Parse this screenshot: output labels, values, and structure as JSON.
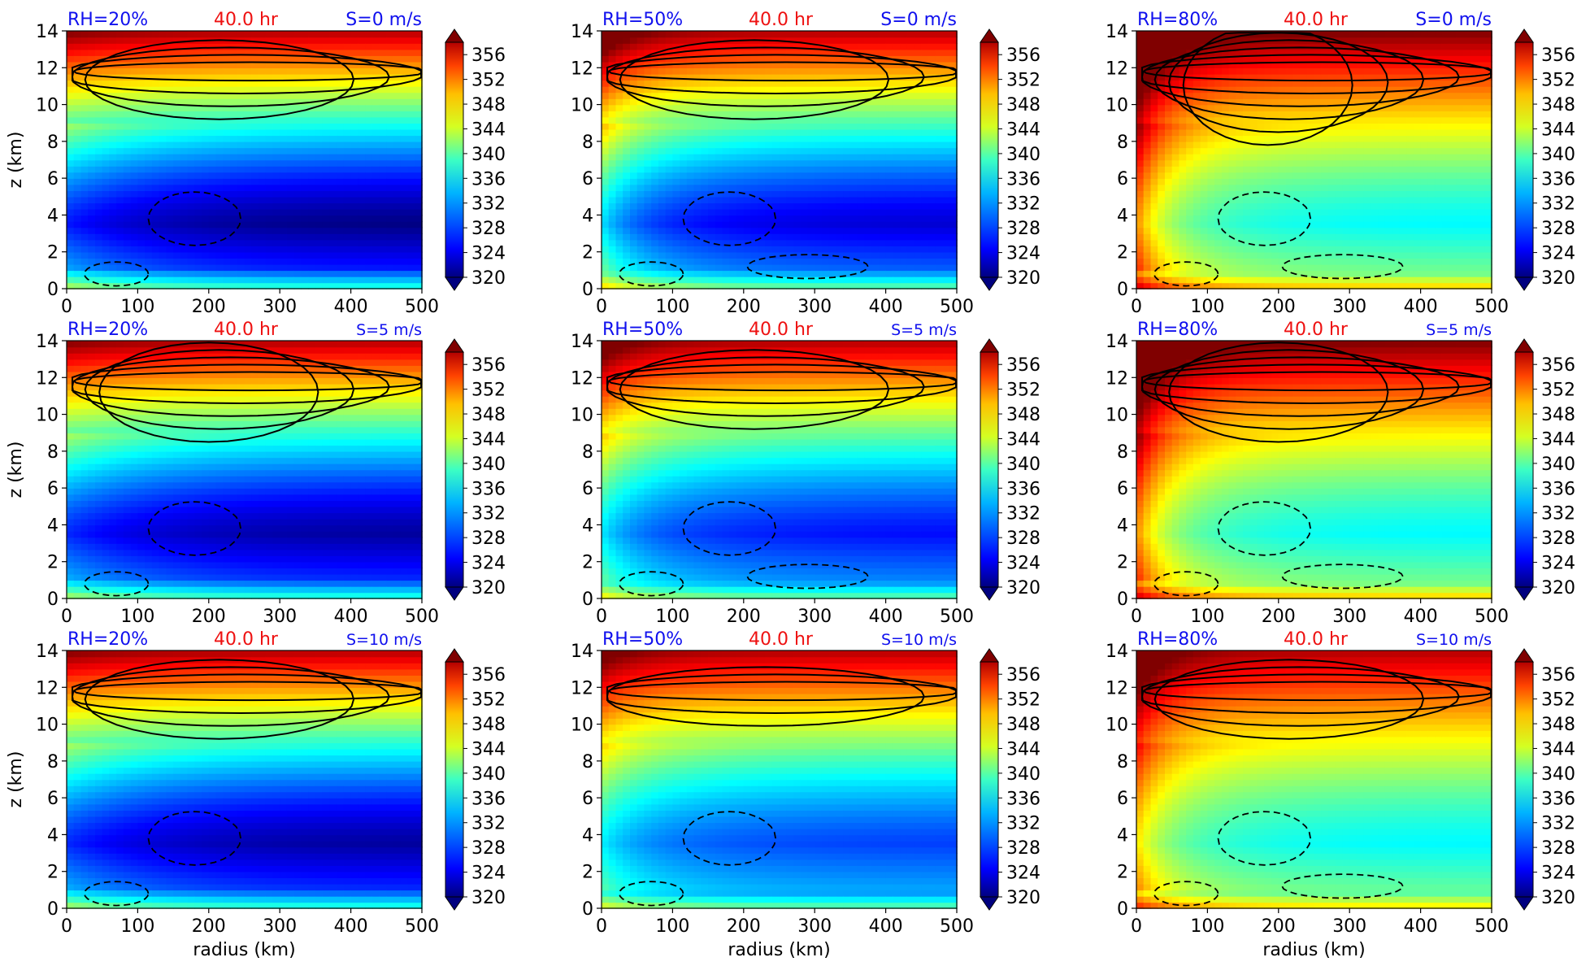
{
  "figure": {
    "row_speed_labels": [
      "S=0 m/s",
      "S=5 m/s",
      "S=10 m/s"
    ],
    "col_rh_labels": [
      "RH=20%",
      "RH=50%",
      "RH=80%"
    ],
    "time_label": "40.0 hr",
    "colors": {
      "rh_label": "#1010ee",
      "time_label": "#ee1111",
      "speed_label": "#1010ee",
      "contour_line": "#000000",
      "axis": "#000000"
    },
    "colormap": "jet",
    "colorbar": {
      "min": 320,
      "max": 358,
      "extend": "both",
      "tick_labels": [
        "320",
        "324",
        "328",
        "332",
        "336",
        "340",
        "344",
        "348",
        "352",
        "356"
      ],
      "tick_values": [
        320,
        324,
        328,
        332,
        336,
        340,
        344,
        348,
        352,
        356
      ]
    }
  },
  "chart_data": [
    {
      "type": "heatmap",
      "rh": "RH=20%",
      "time": "40.0 hr",
      "shear": "S=0 m/s",
      "xlabel": "",
      "ylabel": "z (km)",
      "xlim": [
        0,
        500
      ],
      "ylim": [
        0,
        14
      ],
      "xticks": [
        "0",
        "100",
        "200",
        "300",
        "400",
        "500"
      ],
      "yticks": [
        "0",
        "2",
        "4",
        "6",
        "8",
        "10",
        "12",
        "14"
      ],
      "theta_e_surface": 336,
      "theta_e_min": 320,
      "theta_e_top": 356,
      "core_warm": 0,
      "contour_solid_levels": 4,
      "contour_dashed_regions": 2
    },
    {
      "type": "heatmap",
      "rh": "RH=50%",
      "time": "40.0 hr",
      "shear": "S=0 m/s",
      "xlabel": "",
      "ylabel": "",
      "xlim": [
        0,
        500
      ],
      "ylim": [
        0,
        14
      ],
      "xticks": [
        "0",
        "100",
        "200",
        "300",
        "400",
        "500"
      ],
      "yticks": [
        "0",
        "2",
        "4",
        "6",
        "8",
        "10",
        "12",
        "14"
      ],
      "theta_e_surface": 338,
      "theta_e_min": 323,
      "theta_e_top": 356,
      "core_warm": 0.5,
      "contour_solid_levels": 4,
      "contour_dashed_regions": 3
    },
    {
      "type": "heatmap",
      "rh": "RH=80%",
      "time": "40.0 hr",
      "shear": "S=0 m/s",
      "xlabel": "",
      "ylabel": "",
      "xlim": [
        0,
        500
      ],
      "ylim": [
        0,
        14
      ],
      "xticks": [
        "0",
        "100",
        "200",
        "300",
        "400",
        "500"
      ],
      "yticks": [
        "0",
        "2",
        "4",
        "6",
        "8",
        "10",
        "12",
        "14"
      ],
      "theta_e_surface": 346,
      "theta_e_min": 334,
      "theta_e_top": 358,
      "core_warm": 1,
      "contour_solid_levels": 6,
      "contour_dashed_regions": 3
    },
    {
      "type": "heatmap",
      "rh": "RH=20%",
      "time": "40.0 hr",
      "shear": "S=5 m/s",
      "xlabel": "",
      "ylabel": "z (km)",
      "xlim": [
        0,
        500
      ],
      "ylim": [
        0,
        14
      ],
      "xticks": [
        "0",
        "100",
        "200",
        "300",
        "400",
        "500"
      ],
      "yticks": [
        "0",
        "2",
        "4",
        "6",
        "8",
        "10",
        "12",
        "14"
      ],
      "theta_e_surface": 336,
      "theta_e_min": 321,
      "theta_e_top": 356,
      "core_warm": 0,
      "contour_solid_levels": 5,
      "contour_dashed_regions": 2
    },
    {
      "type": "heatmap",
      "rh": "RH=50%",
      "time": "40.0 hr",
      "shear": "S=5 m/s",
      "xlabel": "",
      "ylabel": "",
      "xlim": [
        0,
        500
      ],
      "ylim": [
        0,
        14
      ],
      "xticks": [
        "0",
        "100",
        "200",
        "300",
        "400",
        "500"
      ],
      "yticks": [
        "0",
        "2",
        "4",
        "6",
        "8",
        "10",
        "12",
        "14"
      ],
      "theta_e_surface": 338,
      "theta_e_min": 325,
      "theta_e_top": 356,
      "core_warm": 0.4,
      "contour_solid_levels": 4,
      "contour_dashed_regions": 3
    },
    {
      "type": "heatmap",
      "rh": "RH=80%",
      "time": "40.0 hr",
      "shear": "S=5 m/s",
      "xlabel": "",
      "ylabel": "",
      "xlim": [
        0,
        500
      ],
      "ylim": [
        0,
        14
      ],
      "xticks": [
        "0",
        "100",
        "200",
        "300",
        "400",
        "500"
      ],
      "yticks": [
        "0",
        "2",
        "4",
        "6",
        "8",
        "10",
        "12",
        "14"
      ],
      "theta_e_surface": 346,
      "theta_e_min": 334,
      "theta_e_top": 358,
      "core_warm": 1,
      "contour_solid_levels": 5,
      "contour_dashed_regions": 3
    },
    {
      "type": "heatmap",
      "rh": "RH=20%",
      "time": "40.0 hr",
      "shear": "S=10 m/s",
      "xlabel": "radius (km)",
      "ylabel": "z (km)",
      "xlim": [
        0,
        500
      ],
      "ylim": [
        0,
        14
      ],
      "xticks": [
        "0",
        "100",
        "200",
        "300",
        "400",
        "500"
      ],
      "yticks": [
        "0",
        "2",
        "4",
        "6",
        "8",
        "10",
        "12",
        "14"
      ],
      "theta_e_surface": 336,
      "theta_e_min": 321,
      "theta_e_top": 356,
      "core_warm": 0,
      "contour_solid_levels": 4,
      "contour_dashed_regions": 2
    },
    {
      "type": "heatmap",
      "rh": "RH=50%",
      "time": "40.0 hr",
      "shear": "S=10 m/s",
      "xlabel": "radius (km)",
      "ylabel": "",
      "xlim": [
        0,
        500
      ],
      "ylim": [
        0,
        14
      ],
      "xticks": [
        "0",
        "100",
        "200",
        "300",
        "400",
        "500"
      ],
      "yticks": [
        "0",
        "2",
        "4",
        "6",
        "8",
        "10",
        "12",
        "14"
      ],
      "theta_e_surface": 338,
      "theta_e_min": 327,
      "theta_e_top": 356,
      "core_warm": 0.3,
      "contour_solid_levels": 3,
      "contour_dashed_regions": 2
    },
    {
      "type": "heatmap",
      "rh": "RH=80%",
      "time": "40.0 hr",
      "shear": "S=10 m/s",
      "xlabel": "radius (km)",
      "ylabel": "",
      "xlim": [
        0,
        500
      ],
      "ylim": [
        0,
        14
      ],
      "xticks": [
        "0",
        "100",
        "200",
        "300",
        "400",
        "500"
      ],
      "yticks": [
        "0",
        "2",
        "4",
        "6",
        "8",
        "10",
        "12",
        "14"
      ],
      "theta_e_surface": 345,
      "theta_e_min": 334,
      "theta_e_top": 356,
      "core_warm": 0.7,
      "contour_solid_levels": 4,
      "contour_dashed_regions": 3
    }
  ]
}
